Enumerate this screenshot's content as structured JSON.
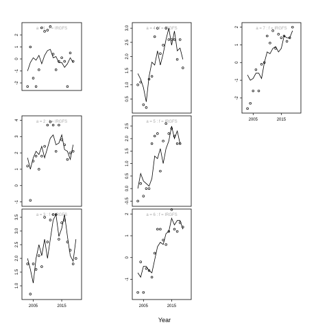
{
  "chart_data": {
    "type": "scatter",
    "xlabel": "Year",
    "xlim": [
      2002,
      2021
    ],
    "colors": {
      "frame": "#000000",
      "line": "#000000",
      "title": "#aaaaaa"
    },
    "panels": [
      {
        "title": "a = 1  :  f = IRGFS",
        "ylim": [
          -2.4,
          2.8
        ],
        "yticks": [
          -2,
          -1,
          0,
          1,
          2
        ],
        "xticks": [],
        "points": [
          [
            2003,
            -2.3
          ],
          [
            2004,
            1.0
          ],
          [
            2005,
            -1.6
          ],
          [
            2006,
            -2.3
          ],
          [
            2007,
            -0.9
          ],
          [
            2008,
            2.6
          ],
          [
            2009,
            2.3
          ],
          [
            2010,
            2.4
          ],
          [
            2011,
            2.7
          ],
          [
            2012,
            0.4
          ],
          [
            2013,
            -0.9
          ],
          [
            2014,
            -0.2
          ],
          [
            2015,
            0.1
          ],
          [
            2016,
            -0.2
          ],
          [
            2017,
            -2.3
          ],
          [
            2018,
            0.5
          ],
          [
            2019,
            -0.2
          ]
        ],
        "fitted": [
          [
            2003,
            -1.0
          ],
          [
            2004,
            -0.3
          ],
          [
            2005,
            0.1
          ],
          [
            2006,
            -0.1
          ],
          [
            2007,
            0.3
          ],
          [
            2008,
            -0.4
          ],
          [
            2009,
            0.3
          ],
          [
            2010,
            0.7
          ],
          [
            2011,
            0.8
          ],
          [
            2012,
            0.1
          ],
          [
            2013,
            0.2
          ],
          [
            2014,
            -0.3
          ],
          [
            2015,
            -0.3
          ],
          [
            2016,
            -0.7
          ],
          [
            2017,
            -0.4
          ],
          [
            2018,
            0.1
          ],
          [
            2019,
            -0.3
          ]
        ]
      },
      {
        "title": "a = 4  :  f = IRGFS",
        "ylim": [
          0.1,
          3.1
        ],
        "yticks": [
          0.5,
          1.0,
          1.5,
          2.0,
          2.5,
          3.0
        ],
        "xticks": [],
        "points": [
          [
            2003,
            1.0
          ],
          [
            2004,
            1.1
          ],
          [
            2005,
            0.3
          ],
          [
            2006,
            0.2
          ],
          [
            2007,
            1.2
          ],
          [
            2008,
            1.3
          ],
          [
            2009,
            2.7
          ],
          [
            2010,
            3.0
          ],
          [
            2011,
            2.1
          ],
          [
            2012,
            2.4
          ],
          [
            2013,
            3.0
          ],
          [
            2014,
            2.6
          ],
          [
            2015,
            2.6
          ],
          [
            2016,
            2.6
          ],
          [
            2017,
            1.9
          ],
          [
            2018,
            2.6
          ],
          [
            2019,
            1.6
          ]
        ],
        "fitted": [
          [
            2003,
            1.4
          ],
          [
            2004,
            1.2
          ],
          [
            2005,
            0.9
          ],
          [
            2006,
            0.4
          ],
          [
            2007,
            1.3
          ],
          [
            2008,
            1.8
          ],
          [
            2009,
            1.7
          ],
          [
            2010,
            2.2
          ],
          [
            2011,
            1.7
          ],
          [
            2012,
            2.1
          ],
          [
            2013,
            2.6
          ],
          [
            2014,
            3.0
          ],
          [
            2015,
            2.4
          ],
          [
            2016,
            2.9
          ],
          [
            2017,
            2.2
          ],
          [
            2018,
            2.3
          ],
          [
            2019,
            1.9
          ]
        ]
      },
      {
        "title": "a = 7  :  f = IRGFS",
        "ylim": [
          -2.7,
          2.1
        ],
        "yticks": [
          -2,
          -1,
          0,
          1,
          2
        ],
        "xticks": [
          2005,
          2015
        ],
        "points": [
          [
            2003,
            -2.6
          ],
          [
            2004,
            -2.3
          ],
          [
            2005,
            -1.6
          ],
          [
            2006,
            -0.4
          ],
          [
            2007,
            -1.6
          ],
          [
            2008,
            -0.1
          ],
          [
            2009,
            0.0
          ],
          [
            2010,
            1.5
          ],
          [
            2011,
            1.1
          ],
          [
            2012,
            1.8
          ],
          [
            2013,
            0.8
          ],
          [
            2014,
            1.6
          ],
          [
            2015,
            1.4
          ],
          [
            2016,
            1.5
          ],
          [
            2017,
            1.2
          ],
          [
            2018,
            1.4
          ],
          [
            2019,
            2.0
          ]
        ],
        "fitted": [
          [
            2003,
            -0.7
          ],
          [
            2004,
            -1.0
          ],
          [
            2005,
            -0.9
          ],
          [
            2006,
            -0.6
          ],
          [
            2007,
            -0.6
          ],
          [
            2008,
            -0.9
          ],
          [
            2009,
            0.0
          ],
          [
            2010,
            0.6
          ],
          [
            2011,
            0.5
          ],
          [
            2012,
            0.8
          ],
          [
            2013,
            0.9
          ],
          [
            2014,
            0.6
          ],
          [
            2015,
            0.8
          ],
          [
            2016,
            1.5
          ],
          [
            2017,
            1.4
          ],
          [
            2018,
            1.4
          ],
          [
            2019,
            1.8
          ]
        ]
      },
      {
        "title": "a = 2  :  f = IRGFS",
        "ylim": [
          -1.1,
          4.1
        ],
        "yticks": [
          -1,
          0,
          1,
          2,
          3,
          4
        ],
        "xticks": [],
        "points": [
          [
            2003,
            1.2
          ],
          [
            2004,
            -0.9
          ],
          [
            2005,
            1.5
          ],
          [
            2006,
            1.8
          ],
          [
            2007,
            1.0
          ],
          [
            2008,
            1.8
          ],
          [
            2009,
            2.4
          ],
          [
            2010,
            3.7
          ],
          [
            2011,
            3.9
          ],
          [
            2012,
            3.7
          ],
          [
            2013,
            2.1
          ],
          [
            2014,
            3.7
          ],
          [
            2015,
            2.8
          ],
          [
            2016,
            2.5
          ],
          [
            2017,
            1.6
          ],
          [
            2018,
            2.0
          ],
          [
            2019,
            2.1
          ]
        ],
        "fitted": [
          [
            2003,
            1.7
          ],
          [
            2004,
            1.0
          ],
          [
            2005,
            1.7
          ],
          [
            2006,
            2.1
          ],
          [
            2007,
            1.9
          ],
          [
            2008,
            2.4
          ],
          [
            2009,
            1.7
          ],
          [
            2010,
            2.3
          ],
          [
            2011,
            2.9
          ],
          [
            2012,
            3.1
          ],
          [
            2013,
            2.5
          ],
          [
            2014,
            2.6
          ],
          [
            2015,
            3.1
          ],
          [
            2016,
            2.2
          ],
          [
            2017,
            2.1
          ],
          [
            2018,
            1.6
          ],
          [
            2019,
            2.5
          ]
        ]
      },
      {
        "title": "a = 5  :  f = IRGFS",
        "ylim": [
          -0.6,
          2.8
        ],
        "yticks": [
          -0.5,
          0.0,
          0.5,
          1.0,
          1.5,
          2.0,
          2.5
        ],
        "xticks": [],
        "points": [
          [
            2003,
            -0.5
          ],
          [
            2004,
            0.2
          ],
          [
            2005,
            -0.3
          ],
          [
            2006,
            0.0
          ],
          [
            2007,
            0.0
          ],
          [
            2008,
            1.8
          ],
          [
            2009,
            2.1
          ],
          [
            2010,
            2.2
          ],
          [
            2011,
            0.7
          ],
          [
            2012,
            1.9
          ],
          [
            2013,
            2.6
          ],
          [
            2014,
            2.2
          ],
          [
            2015,
            2.4
          ],
          [
            2016,
            2.1
          ],
          [
            2017,
            1.8
          ],
          [
            2018,
            1.8
          ]
        ],
        "fitted": [
          [
            2003,
            0.0
          ],
          [
            2004,
            0.6
          ],
          [
            2005,
            0.3
          ],
          [
            2006,
            0.2
          ],
          [
            2007,
            0.1
          ],
          [
            2008,
            0.4
          ],
          [
            2009,
            1.3
          ],
          [
            2010,
            1.2
          ],
          [
            2011,
            1.6
          ],
          [
            2012,
            1.0
          ],
          [
            2013,
            1.6
          ],
          [
            2014,
            1.9
          ],
          [
            2015,
            2.5
          ],
          [
            2016,
            2.0
          ],
          [
            2017,
            2.3
          ],
          [
            2018,
            1.8
          ]
        ]
      },
      {
        "title": "a = 6  :  f = IRGFS",
        "ylim": [
          -1.8,
          2.1
        ],
        "yticks": [
          -1,
          0,
          1,
          2
        ],
        "xticks": [
          2005,
          2015
        ],
        "points": [
          [
            2003,
            -1.6
          ],
          [
            2004,
            -0.2
          ],
          [
            2005,
            -1.6
          ],
          [
            2006,
            -0.5
          ],
          [
            2007,
            -0.6
          ],
          [
            2008,
            -0.9
          ],
          [
            2009,
            0.2
          ],
          [
            2010,
            1.3
          ],
          [
            2011,
            1.3
          ],
          [
            2012,
            0.8
          ],
          [
            2013,
            0.6
          ],
          [
            2014,
            1.2
          ],
          [
            2015,
            2.2
          ],
          [
            2016,
            1.3
          ],
          [
            2017,
            1.2
          ],
          [
            2018,
            1.6
          ],
          [
            2019,
            1.4
          ]
        ],
        "fitted": [
          [
            2003,
            -0.7
          ],
          [
            2004,
            -0.9
          ],
          [
            2005,
            -0.4
          ],
          [
            2006,
            -0.4
          ],
          [
            2007,
            -0.6
          ],
          [
            2008,
            -0.7
          ],
          [
            2009,
            -0.1
          ],
          [
            2010,
            0.5
          ],
          [
            2011,
            0.7
          ],
          [
            2012,
            0.6
          ],
          [
            2013,
            1.1
          ],
          [
            2014,
            1.2
          ],
          [
            2015,
            1.8
          ],
          [
            2016,
            1.5
          ],
          [
            2017,
            1.7
          ],
          [
            2018,
            1.7
          ],
          [
            2019,
            1.3
          ]
        ]
      },
      {
        "title": "a = 3  :  f = IRGFS",
        "ylim": [
          0.6,
          3.7
        ],
        "yticks": [
          1.0,
          1.5,
          2.0,
          2.5,
          3.0,
          3.5
        ],
        "xticks": [
          2005,
          2015
        ],
        "points": [
          [
            2003,
            1.8
          ],
          [
            2004,
            0.7
          ],
          [
            2005,
            1.8
          ],
          [
            2006,
            1.6
          ],
          [
            2007,
            2.1
          ],
          [
            2008,
            1.7
          ],
          [
            2009,
            3.5
          ],
          [
            2010,
            2.6
          ],
          [
            2011,
            3.4
          ],
          [
            2012,
            3.6
          ],
          [
            2013,
            3.6
          ],
          [
            2014,
            2.7
          ],
          [
            2015,
            3.3
          ],
          [
            2016,
            3.4
          ],
          [
            2017,
            2.6
          ],
          [
            2018,
            2.3
          ],
          [
            2019,
            1.8
          ],
          [
            2020,
            2.0
          ]
        ],
        "fitted": [
          [
            2003,
            2.0
          ],
          [
            2004,
            1.6
          ],
          [
            2005,
            1.1
          ],
          [
            2006,
            2.0
          ],
          [
            2007,
            2.5
          ],
          [
            2008,
            2.1
          ],
          [
            2009,
            2.7
          ],
          [
            2010,
            2.0
          ],
          [
            2011,
            2.7
          ],
          [
            2012,
            3.4
          ],
          [
            2013,
            3.6
          ],
          [
            2014,
            2.8
          ],
          [
            2015,
            3.1
          ],
          [
            2016,
            3.6
          ],
          [
            2017,
            2.8
          ],
          [
            2018,
            2.1
          ],
          [
            2019,
            1.9
          ],
          [
            2020,
            2.7
          ]
        ]
      }
    ]
  }
}
